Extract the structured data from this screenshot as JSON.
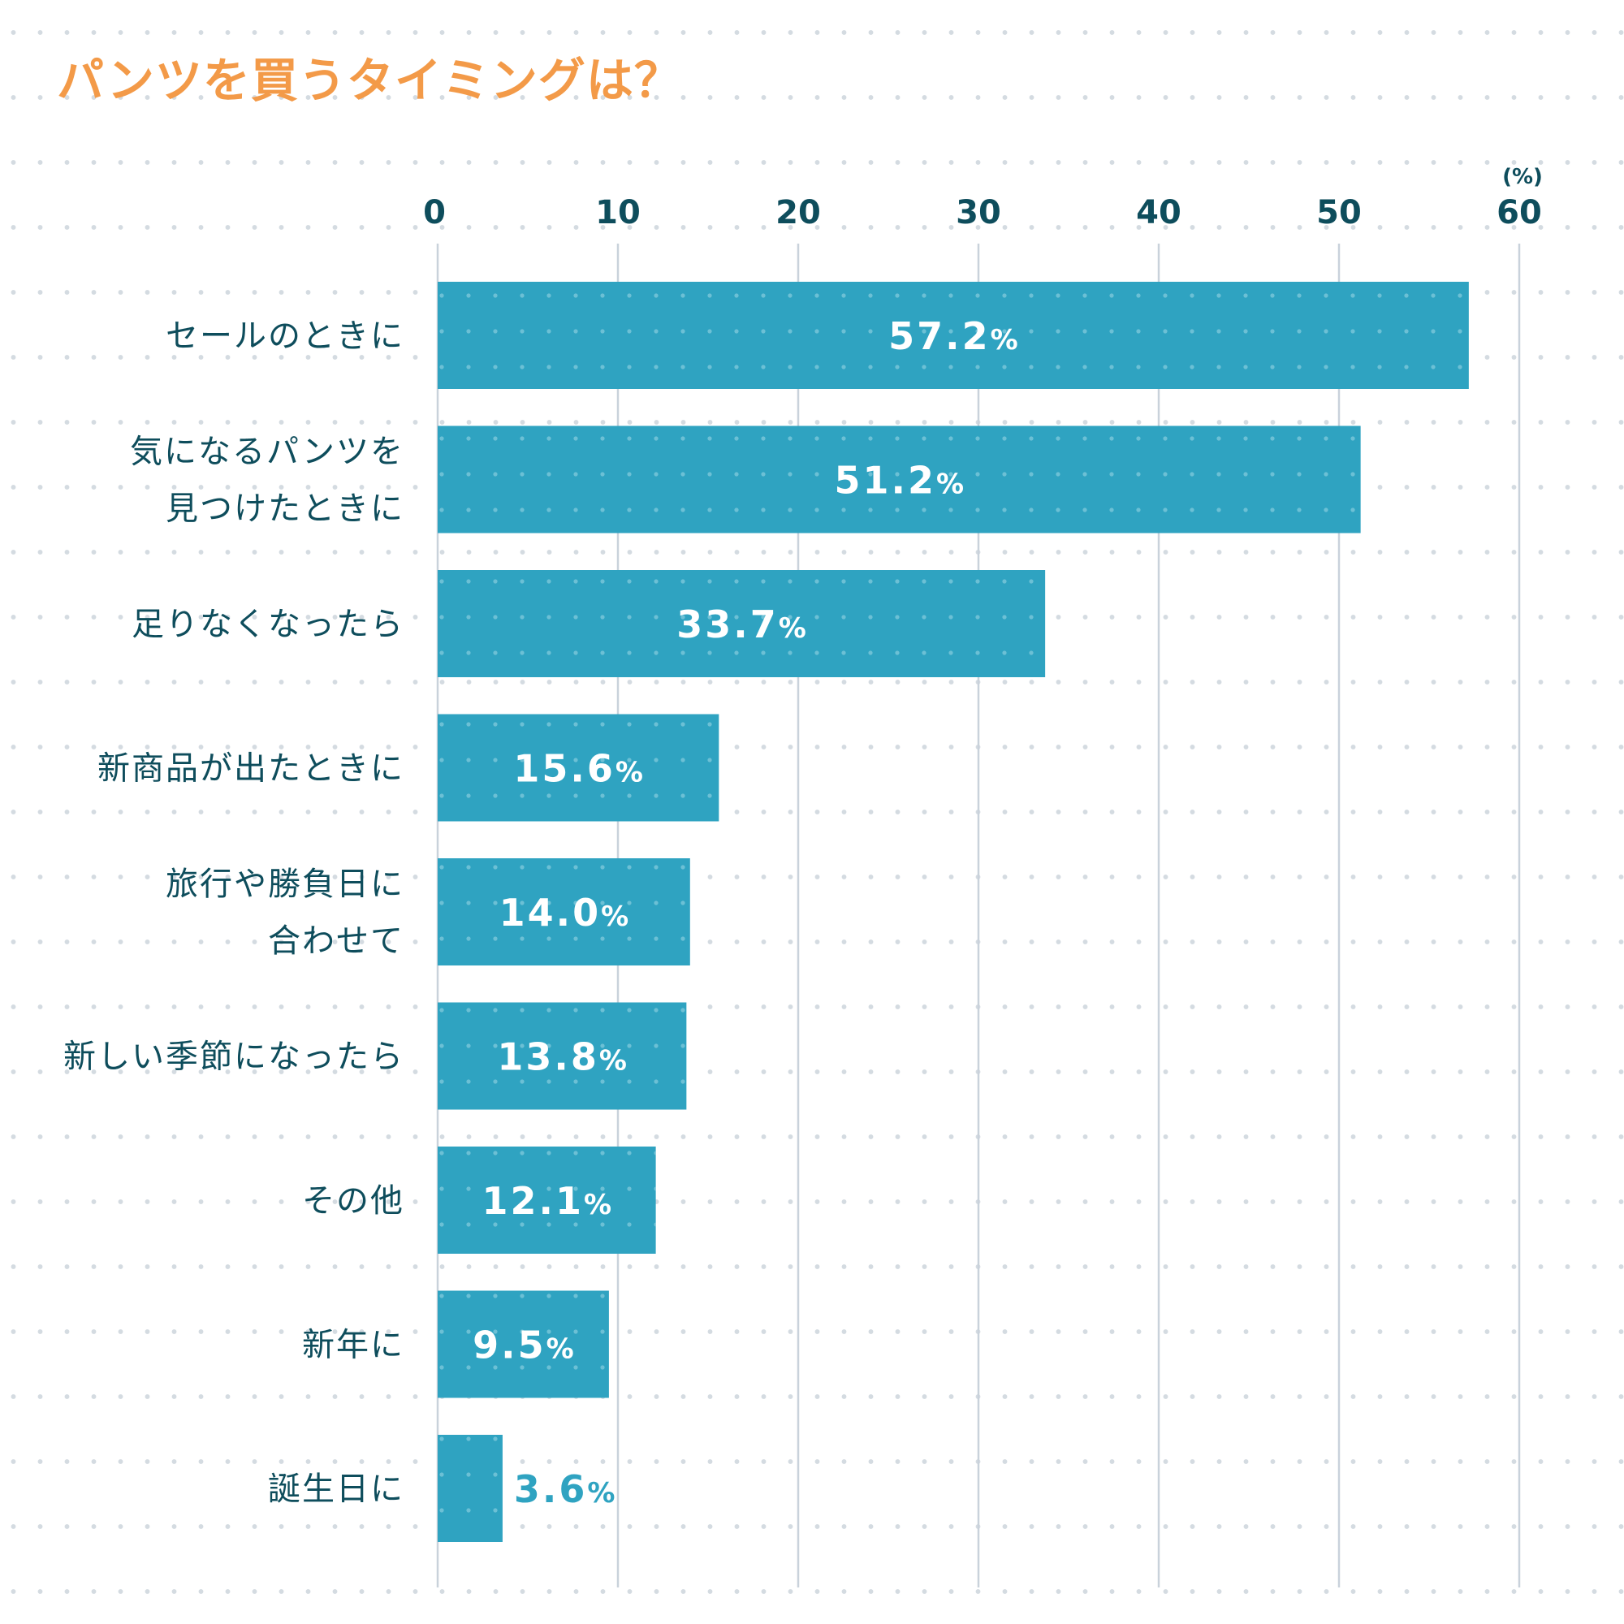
{
  "chart_data": {
    "type": "bar",
    "orientation": "horizontal",
    "title": "パンツを買うタイミングは？",
    "unit_label": "(%)",
    "xlim": [
      0,
      60
    ],
    "ticks": [
      "0",
      "10",
      "20",
      "30",
      "40",
      "50",
      "60"
    ],
    "grid": true,
    "categories": [
      [
        "セールのときに"
      ],
      [
        "気になるパンツを",
        "見つけたときに"
      ],
      [
        "足りなくなったら"
      ],
      [
        "新商品が出たときに"
      ],
      [
        "旅行や勝負日に",
        "合わせて"
      ],
      [
        "新しい季節になったら"
      ],
      [
        "その他"
      ],
      [
        "新年に"
      ],
      [
        "誕生日に"
      ]
    ],
    "values": [
      57.2,
      51.2,
      33.7,
      15.6,
      14.0,
      13.8,
      12.1,
      9.5,
      3.6
    ],
    "value_labels": [
      "57.2",
      "51.2",
      "33.7",
      "15.6",
      "14.0",
      "13.8",
      "12.1",
      "9.5",
      "3.6"
    ],
    "percent_sign": "%"
  },
  "colors": {
    "title": "#f39a48",
    "bar": "#2fa3c1",
    "bar_dots": "#6cc0d5",
    "text": "#0e4d5c",
    "grid": "#c9d2db",
    "label_inside": "#ffffff",
    "label_outside": "#2fa3c1"
  }
}
